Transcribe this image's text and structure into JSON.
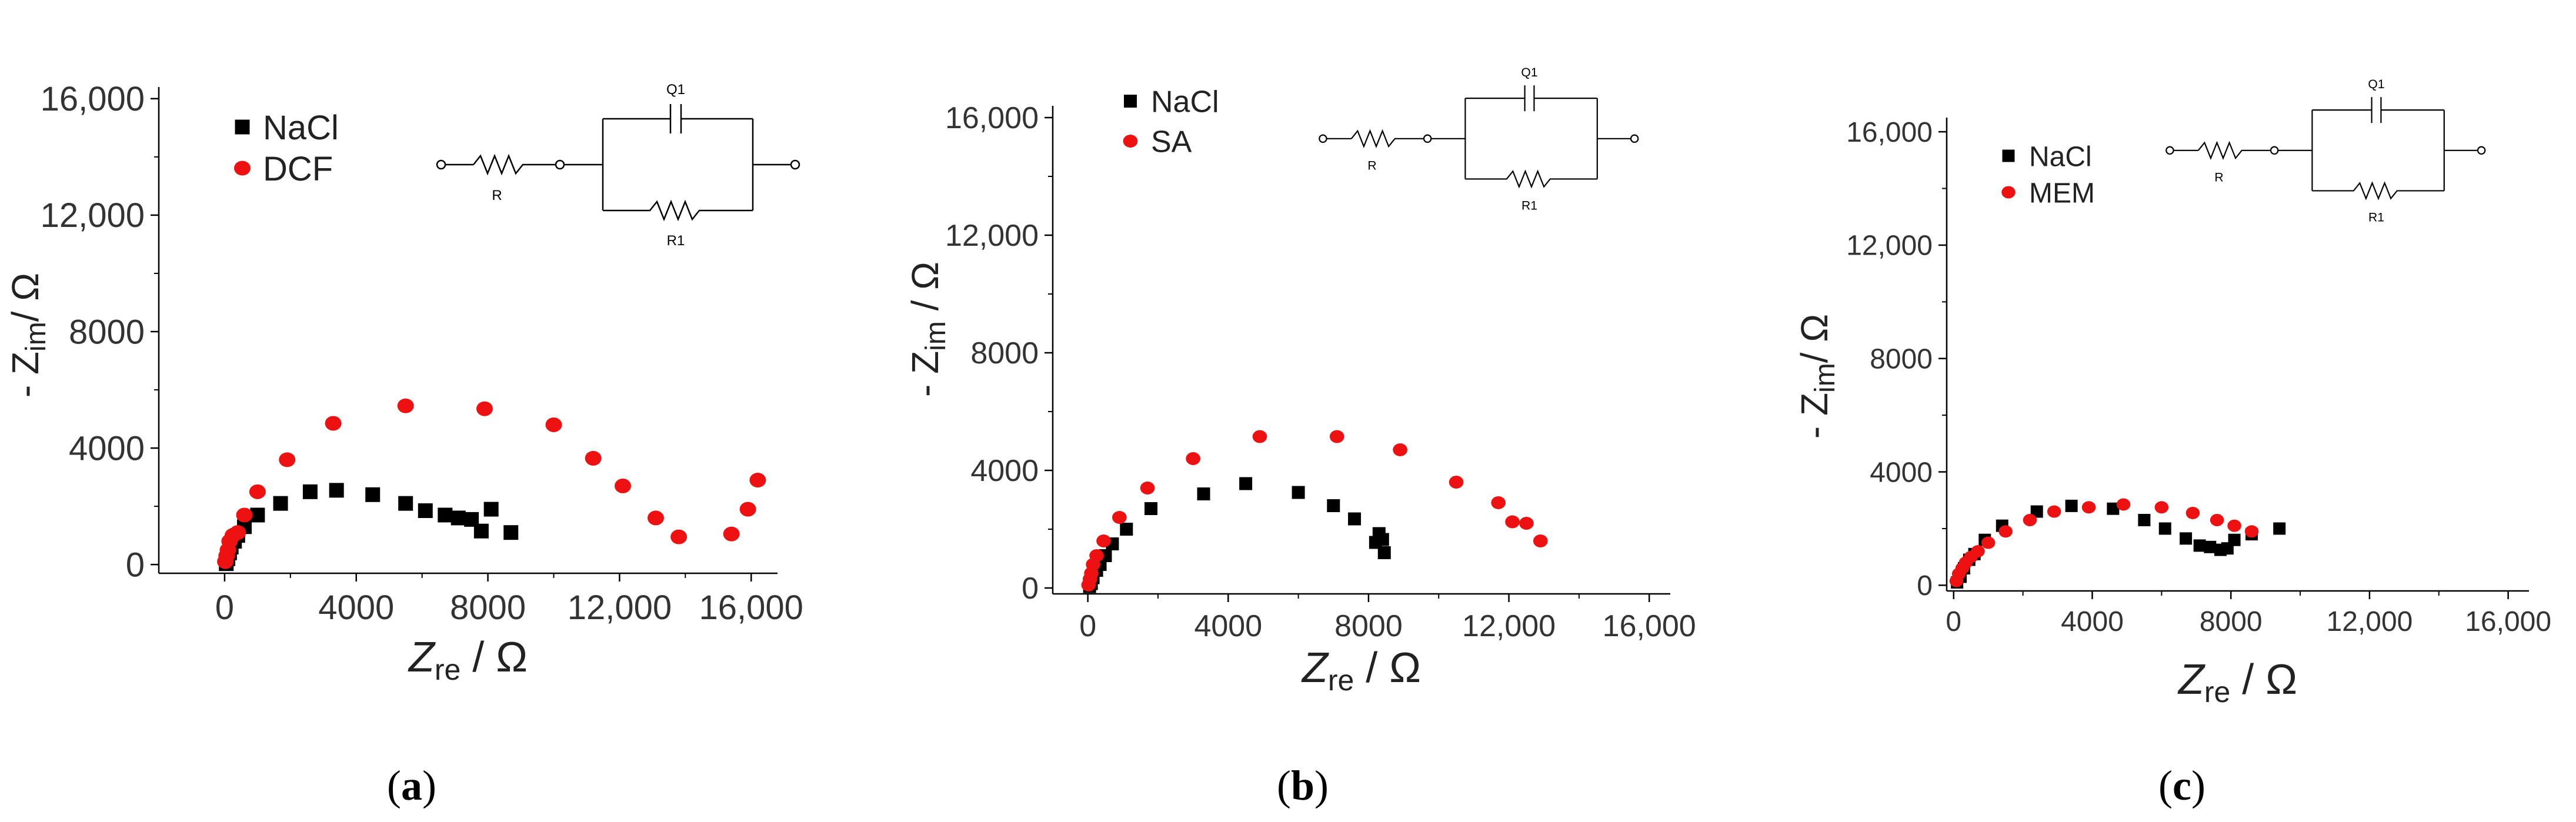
{
  "colors": {
    "nacl": "#000000",
    "other": "#ee1111",
    "axis": "#000000",
    "circuit": "#000000"
  },
  "circuit_labels": {
    "capacitor": "Q1",
    "resistor_series": "R",
    "resistor_parallel": "R1"
  },
  "chart_data": [
    {
      "type": "scatter",
      "panel_label": "a",
      "xlabel_main": "Z",
      "xlabel_sub": "re",
      "xlabel_unit": " / Ω",
      "ylabel_main": "- Z",
      "ylabel_sub": "im",
      "ylabel_unit": "/ Ω",
      "xlim": [
        -2000,
        16800
      ],
      "ylim": [
        -300,
        16400
      ],
      "xticks": [
        0,
        4000,
        8000,
        12000,
        16000
      ],
      "xtick_labels": [
        "0",
        "4000",
        "8000",
        "12,000",
        "16,000"
      ],
      "yticks": [
        0,
        4000,
        8000,
        12000,
        16000
      ],
      "ytick_labels": [
        "0",
        "4000",
        "8000",
        "12,000",
        "16,000"
      ],
      "legend": [
        "NaCl",
        "DCF"
      ],
      "series": [
        {
          "name": "NaCl",
          "marker": "square",
          "x": [
            50,
            100,
            150,
            200,
            300,
            400,
            600,
            1000,
            1700,
            2600,
            3400,
            4500,
            5500,
            6100,
            6700,
            7100,
            7500,
            7800,
            8100,
            8700
          ],
          "y": [
            30,
            200,
            400,
            600,
            800,
            1000,
            1300,
            1700,
            2100,
            2500,
            2550,
            2400,
            2100,
            1850,
            1700,
            1600,
            1550,
            1150,
            1900,
            1100
          ]
        },
        {
          "name": "DCF",
          "marker": "circle",
          "x": [
            20,
            60,
            100,
            150,
            250,
            400,
            600,
            1000,
            1900,
            3300,
            5500,
            7900,
            10000,
            11200,
            12100,
            13100,
            13800,
            15400,
            15900,
            16200
          ],
          "y": [
            100,
            300,
            500,
            800,
            1000,
            1100,
            1700,
            2500,
            3600,
            4850,
            5450,
            5350,
            4800,
            3650,
            2700,
            1600,
            950,
            1050,
            1900,
            2900
          ]
        }
      ]
    },
    {
      "type": "scatter",
      "panel_label": "b",
      "xlabel_main": "Z",
      "xlabel_sub": "re",
      "xlabel_unit": " / Ω",
      "ylabel_main": "- Z",
      "ylabel_sub": "im",
      "ylabel_unit": " / Ω",
      "xlim": [
        -1000,
        16600
      ],
      "ylim": [
        -200,
        16400
      ],
      "xticks": [
        0,
        4000,
        8000,
        12000,
        16000
      ],
      "xtick_labels": [
        "0",
        "4000",
        "8000",
        "12,000",
        "16,000"
      ],
      "yticks": [
        0,
        4000,
        8000,
        12000,
        16000
      ],
      "ytick_labels": [
        "0",
        "4000",
        "8000",
        "12,000",
        "16,000"
      ],
      "legend": [
        "NaCl",
        "SA"
      ],
      "series": [
        {
          "name": "NaCl",
          "marker": "square",
          "x": [
            50,
            100,
            150,
            250,
            350,
            500,
            700,
            1100,
            1800,
            3300,
            4500,
            6000,
            7000,
            7600,
            8200,
            8300,
            8400,
            8450
          ],
          "y": [
            50,
            150,
            350,
            600,
            800,
            1100,
            1500,
            2000,
            2700,
            3200,
            3550,
            3250,
            2800,
            2350,
            1550,
            1850,
            1650,
            1200
          ]
        },
        {
          "name": "SA",
          "marker": "circle",
          "x": [
            20,
            60,
            100,
            150,
            250,
            450,
            900,
            1700,
            3000,
            4900,
            7100,
            8900,
            10500,
            11700,
            12100,
            12500,
            12900
          ],
          "y": [
            100,
            300,
            500,
            800,
            1100,
            1600,
            2400,
            3400,
            4400,
            5150,
            5150,
            4700,
            3600,
            2900,
            2250,
            2200,
            1600
          ]
        }
      ]
    },
    {
      "type": "scatter",
      "panel_label": "c",
      "xlabel_main": "Z",
      "xlabel_sub": "re",
      "xlabel_unit": " / Ω",
      "ylabel_main": "- Z",
      "ylabel_sub": "im",
      "ylabel_unit": "/ Ω",
      "xlim": [
        -200,
        16600
      ],
      "ylim": [
        -200,
        16500
      ],
      "xticks": [
        0,
        4000,
        8000,
        12000,
        16000
      ],
      "xtick_labels": [
        "0",
        "4000",
        "8000",
        "12,000",
        "16,000"
      ],
      "yticks": [
        0,
        4000,
        8000,
        12000,
        16000
      ],
      "ytick_labels": [
        "0",
        "4000",
        "8000",
        "12,000",
        "16,000"
      ],
      "legend": [
        "NaCl",
        "MEM"
      ],
      "series": [
        {
          "name": "NaCl",
          "marker": "square",
          "x": [
            100,
            200,
            300,
            450,
            600,
            900,
            1400,
            2400,
            3400,
            4600,
            5500,
            6100,
            6700,
            7100,
            7400,
            7700,
            7900,
            8100,
            8600,
            9400
          ],
          "y": [
            100,
            300,
            600,
            900,
            1100,
            1600,
            2100,
            2600,
            2800,
            2700,
            2300,
            2000,
            1650,
            1400,
            1350,
            1250,
            1300,
            1600,
            1800,
            2000
          ]
        },
        {
          "name": "MEM",
          "marker": "circle",
          "x": [
            80,
            150,
            250,
            350,
            500,
            700,
            1000,
            1500,
            2200,
            2900,
            3900,
            4900,
            6000,
            6900,
            7600,
            8100,
            8600
          ],
          "y": [
            150,
            400,
            600,
            800,
            1000,
            1200,
            1500,
            1900,
            2300,
            2600,
            2750,
            2850,
            2750,
            2550,
            2300,
            2100,
            1900
          ]
        }
      ]
    }
  ]
}
